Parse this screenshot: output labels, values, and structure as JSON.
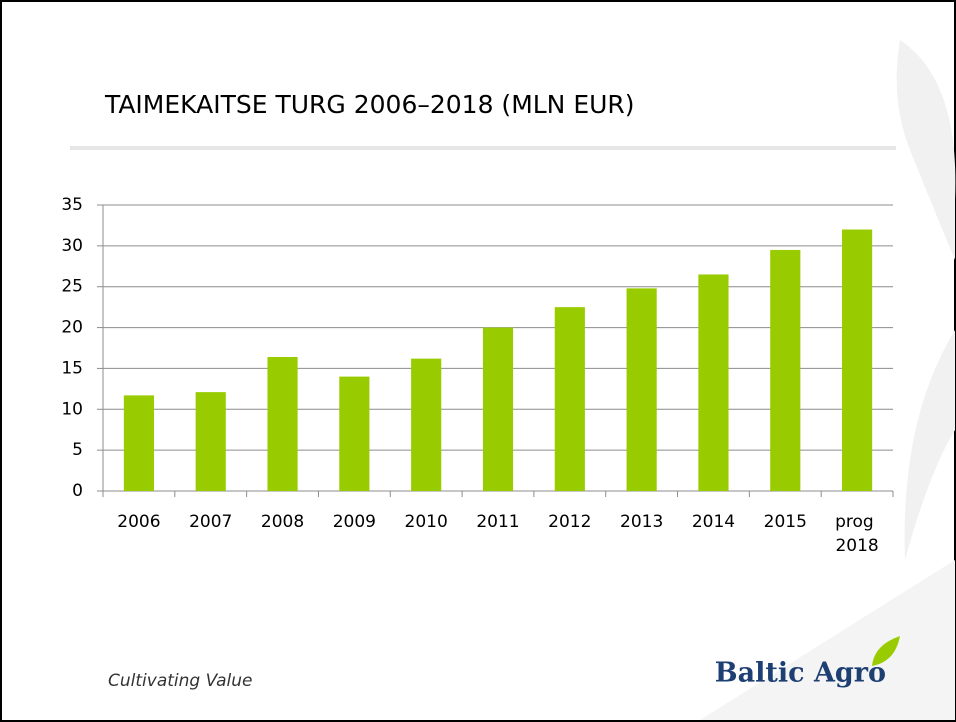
{
  "chart_data": {
    "type": "bar",
    "title": "TAIMEKAITSE TURG 2006–2018 (MLN EUR)",
    "categories": [
      "2006",
      "2007",
      "2008",
      "2009",
      "2010",
      "2011",
      "2012",
      "2013",
      "2014",
      "2015",
      "prog 2018"
    ],
    "values": [
      11.7,
      12.1,
      16.4,
      14.0,
      16.2,
      20.0,
      22.5,
      24.8,
      26.5,
      29.5,
      32.0
    ],
    "color": "#99cc00",
    "ylim": [
      0,
      35
    ],
    "yticks": [
      0,
      5,
      10,
      15,
      20,
      25,
      30,
      35
    ],
    "grid": true
  },
  "footer": {
    "tagline": "Cultivating Value",
    "logo": "Baltic Agro"
  }
}
